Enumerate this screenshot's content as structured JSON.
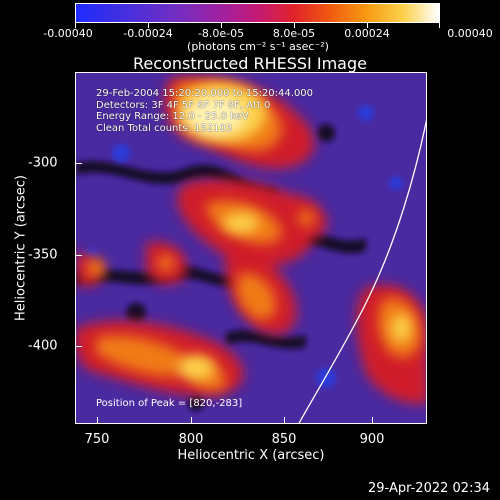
{
  "colorbar": {
    "tick_labels": [
      "-0.00040",
      "-0.00024",
      "-8.0e-05",
      "8.0e-05",
      "0.00024",
      "0.00040"
    ],
    "units_label": "(photons cm⁻² s⁻¹ asec⁻²)",
    "colormap": [
      "#1f2cff",
      "#5a2fd1",
      "#a020a0",
      "#e1232b",
      "#f79a12",
      "#ffffff"
    ]
  },
  "title": "Reconstructed RHESSI Image",
  "info": {
    "time_range": "29-Feb-2004 15:20:20.000 to 15:20:44.000",
    "detectors": "Detectors: 3F 4F 5F 6F 7F 8F, Att 0",
    "energy_range": "Energy Range: 12.0 - 25.0 keV",
    "clean": "Clean    Total counts: 152103"
  },
  "peak_position": "Position of Peak = [820,-283]",
  "x_axis": {
    "label": "Heliocentric X (arcsec)",
    "ticks": [
      "750",
      "800",
      "850",
      "900"
    ]
  },
  "y_axis": {
    "label": "Heliocentric Y (arcsec)",
    "ticks": [
      "-300",
      "-350",
      "-400"
    ]
  },
  "timestamp": "29-Apr-2022 02:34",
  "colors": {
    "background": "#000000",
    "axis": "#ffffff",
    "limb_line": "#ffffff"
  }
}
